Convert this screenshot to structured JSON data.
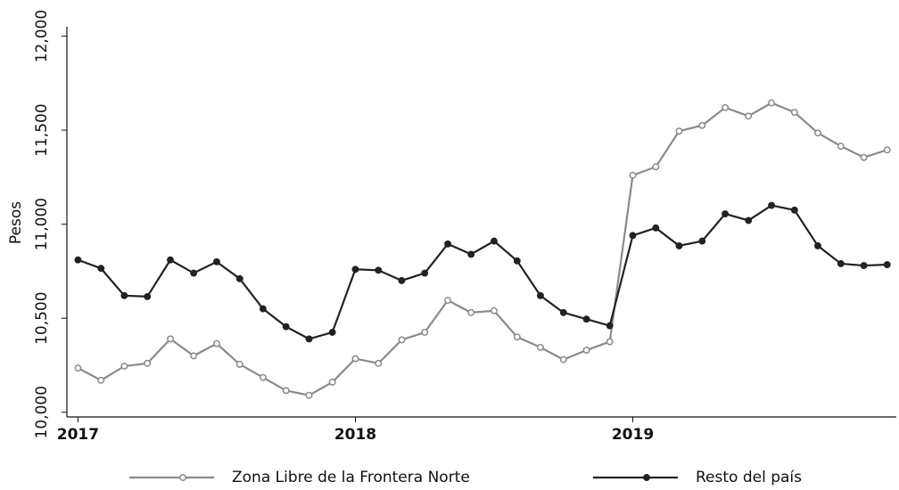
{
  "chart_data": {
    "type": "line",
    "ylabel": "Pesos",
    "x": [
      2017,
      2017.083,
      2017.167,
      2017.25,
      2017.333,
      2017.417,
      2017.5,
      2017.583,
      2017.667,
      2017.75,
      2017.833,
      2017.917,
      2018,
      2018.083,
      2018.167,
      2018.25,
      2018.333,
      2018.417,
      2018.5,
      2018.583,
      2018.667,
      2018.75,
      2018.833,
      2018.917,
      2019,
      2019.083,
      2019.167,
      2019.25,
      2019.333,
      2019.417,
      2019.5,
      2019.583,
      2019.667,
      2019.75,
      2019.833,
      2019.917
    ],
    "series": [
      {
        "name": "Zona Libre de la Frontera Norte",
        "color": "#8a8a8a",
        "marker": "open",
        "values": [
          10235,
          10170,
          10245,
          10260,
          10390,
          10300,
          10365,
          10255,
          10185,
          10115,
          10090,
          10160,
          10285,
          10260,
          10385,
          10425,
          10595,
          10530,
          10540,
          10400,
          10345,
          10280,
          10330,
          10375,
          11260,
          11305,
          11495,
          11525,
          11620,
          11575,
          11645,
          11595,
          11485,
          11415,
          11355,
          11395
        ]
      },
      {
        "name": "Resto del país",
        "color": "#222222",
        "marker": "filled",
        "values": [
          10810,
          10765,
          10620,
          10615,
          10810,
          10740,
          10800,
          10710,
          10550,
          10455,
          10390,
          10425,
          10760,
          10755,
          10700,
          10740,
          10895,
          10840,
          10910,
          10805,
          10620,
          10530,
          10495,
          10460,
          10940,
          10980,
          10885,
          10910,
          11055,
          11020,
          11100,
          11075,
          10885,
          10790,
          10780,
          10785
        ]
      }
    ],
    "xlim": [
      2016.96,
      2019.95
    ],
    "xticks": [
      2017,
      2018,
      2019
    ],
    "ylim": [
      9975,
      12050
    ],
    "yticks": [
      {
        "value": 10000,
        "label": "10,000"
      },
      {
        "value": 10500,
        "label": "10,500"
      },
      {
        "value": 11000,
        "label": "11,000"
      },
      {
        "value": 11500,
        "label": "11,500"
      },
      {
        "value": 12000,
        "label": "12,000"
      }
    ],
    "legend": "bottom"
  }
}
